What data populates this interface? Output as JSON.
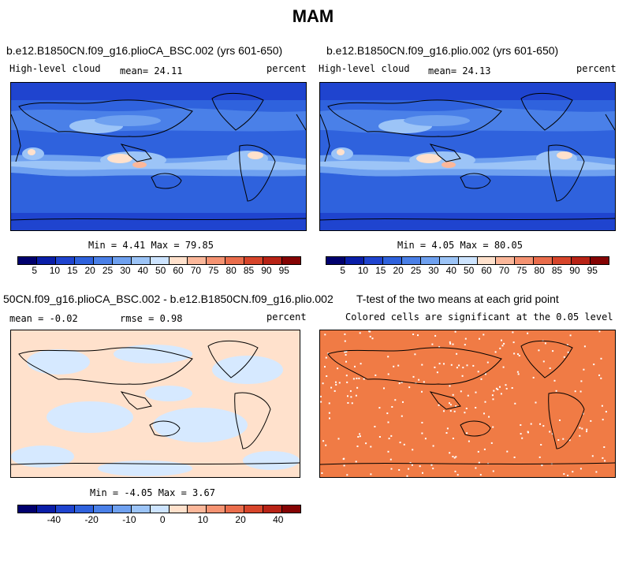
{
  "figure_title": "MAM",
  "colors": {
    "map_blue": "#2f62dd",
    "coast": "#000000",
    "sig_fill": "#f07b45",
    "low_diff": "#d6e9ff",
    "high_diff": "#ffe1cc"
  },
  "panels": {
    "top_left": {
      "title": "b.e12.B1850CN.f09_g16.plioCA_BSC.002 (yrs 601-650)",
      "var_label": "High-level cloud",
      "mean_text": "mean=  24.11",
      "units": "percent",
      "minmax": "Min =   4.41 Max =  79.85"
    },
    "top_right": {
      "title": "b.e12.B1850CN.f09_g16.plio.002 (yrs 601-650)",
      "var_label": "High-level cloud",
      "mean_text": "mean=  24.13",
      "units": "percent",
      "minmax": "Min =   4.05 Max =  80.05"
    },
    "bottom_left": {
      "title": "50CN.f09_g16.plioCA_BSC.002 - b.e12.B1850CN.f09_g16.plio.002",
      "mean_text": "mean =  -0.02",
      "rmse_text": "rmse =    0.98",
      "units": "percent",
      "minmax": "Min =  -4.05 Max =   3.67"
    },
    "bottom_right": {
      "title": "T-test of the two means at each grid point",
      "subtitle": "Colored cells are significant at the 0.05 level"
    }
  },
  "chart_data": [
    {
      "type": "heatmap",
      "title": "b.e12.B1850CN.f09_g16.plioCA_BSC.002 (yrs 601-650)",
      "variable": "High-level cloud",
      "units": "percent",
      "mean": 24.11,
      "min": 4.41,
      "max": 79.85,
      "colorbar_levels": [
        5,
        10,
        15,
        20,
        25,
        30,
        40,
        50,
        60,
        70,
        75,
        80,
        85,
        90,
        95
      ]
    },
    {
      "type": "heatmap",
      "title": "b.e12.B1850CN.f09_g16.plio.002 (yrs 601-650)",
      "variable": "High-level cloud",
      "units": "percent",
      "mean": 24.13,
      "min": 4.05,
      "max": 80.05,
      "colorbar_levels": [
        5,
        10,
        15,
        20,
        25,
        30,
        40,
        50,
        60,
        70,
        75,
        80,
        85,
        90,
        95
      ]
    },
    {
      "type": "heatmap",
      "title": "50CN.f09_g16.plioCA_BSC.002 - b.e12.B1850CN.f09_g16.plio.002",
      "units": "percent",
      "mean": -0.02,
      "rmse": 0.98,
      "min": -4.05,
      "max": 3.67,
      "colorbar_tick_labels": [
        "-40",
        "-20",
        "-10",
        "0",
        "10",
        "20",
        "40"
      ]
    },
    {
      "type": "heatmap",
      "title": "T-test of the two means at each grid point",
      "subtitle": "Colored cells are significant at the 0.05 level",
      "significance_level": 0.05
    }
  ],
  "colorbar_abs": {
    "colors": [
      "#00006e",
      "#0a1ea8",
      "#1f44cf",
      "#2f62dd",
      "#4a80e8",
      "#6fa1f0",
      "#9cc4f7",
      "#cde4ff",
      "#ffe1cc",
      "#fbb79a",
      "#f59372",
      "#ea6d4c",
      "#d7452b",
      "#b82316",
      "#850404"
    ],
    "labels": [
      "5",
      "10",
      "15",
      "20",
      "25",
      "30",
      "40",
      "50",
      "60",
      "70",
      "75",
      "80",
      "85",
      "90",
      "95"
    ]
  },
  "colorbar_diff": {
    "colors": [
      "#00006e",
      "#0a1ea8",
      "#1f44cf",
      "#2f62dd",
      "#4a80e8",
      "#6fa1f0",
      "#9cc4f7",
      "#cde4ff",
      "#ffe1cc",
      "#fbb79a",
      "#f59372",
      "#ea6d4c",
      "#d7452b",
      "#b82316",
      "#850404"
    ],
    "labels": [
      "-40",
      "-20",
      "-10",
      "0",
      "10",
      "20",
      "40"
    ]
  }
}
